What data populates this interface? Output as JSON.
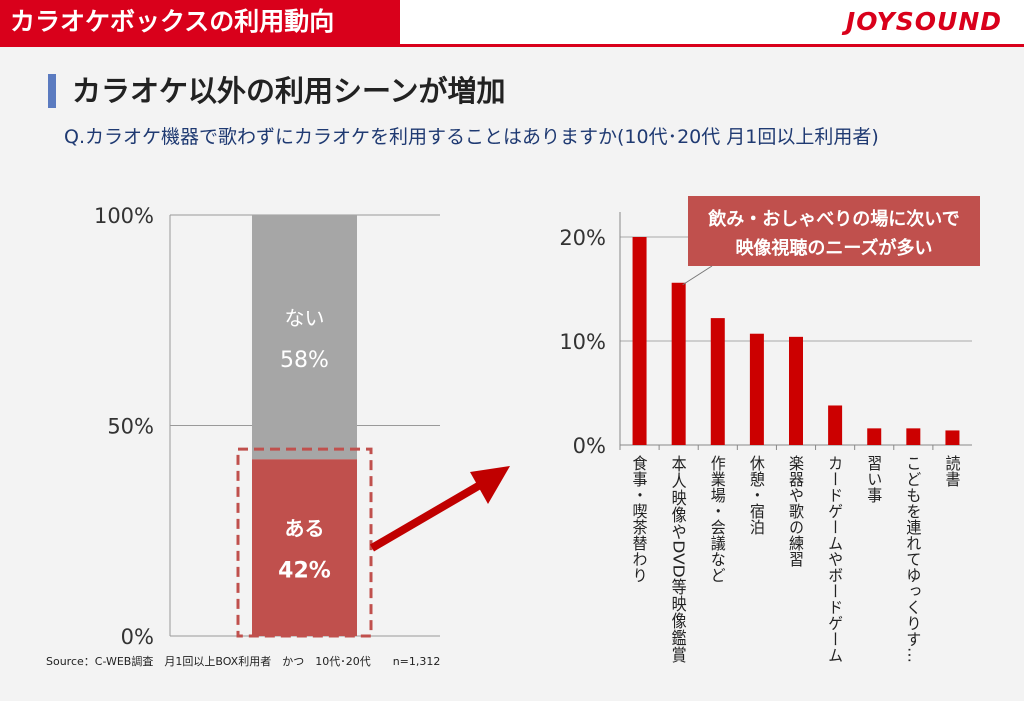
{
  "header": {
    "title": "カラオケボックスの利用動向",
    "logo_text": "JOYSOUND",
    "brand_color": "#d9001b"
  },
  "section": {
    "title": "カラオケ以外の利用シーンが増加",
    "accent_color": "#5b7bc0"
  },
  "question": "Q.カラオケ機器で歌わずにカラオケを利用することはありますか(10代･20代 月1回以上利用者)",
  "source": "Source：C-WEB調査　月1回以上BOX利用者　かつ　10代･20代　　n=1,312",
  "chart_data": [
    {
      "type": "bar",
      "stacked": true,
      "ylim": [
        0,
        100
      ],
      "yticks": [
        "0%",
        "50%",
        "100%"
      ],
      "series": [
        {
          "name": "ある",
          "value": 42,
          "label": "42%",
          "color": "#c0504d"
        },
        {
          "name": "ない",
          "value": 58,
          "label": "58%",
          "color": "#a6a6a6"
        }
      ],
      "highlight": "dashed-box",
      "highlight_color": "#c0504d"
    },
    {
      "type": "bar",
      "ylim": [
        0,
        20
      ],
      "yticks": [
        "0%",
        "10%",
        "20%"
      ],
      "grid": true,
      "bar_color": "#cc0000",
      "categories": [
        "食事・喫茶替わり",
        "本人映像やDVD等映像鑑賞",
        "作業場・会議など",
        "休憩・宿泊",
        "楽器や歌の練習",
        "カードゲームやボードゲーム",
        "習い事",
        "こどもを連れてゆっくりす…",
        "読書"
      ],
      "values": [
        20.0,
        15.6,
        12.2,
        10.7,
        10.4,
        3.8,
        1.6,
        1.6,
        1.4
      ],
      "callout": {
        "lines": [
          "飲み・おしゃべりの場に次いで",
          "映像視聴のニーズが多い"
        ],
        "color": "#c0504d",
        "points_to_index": 1
      }
    }
  ]
}
